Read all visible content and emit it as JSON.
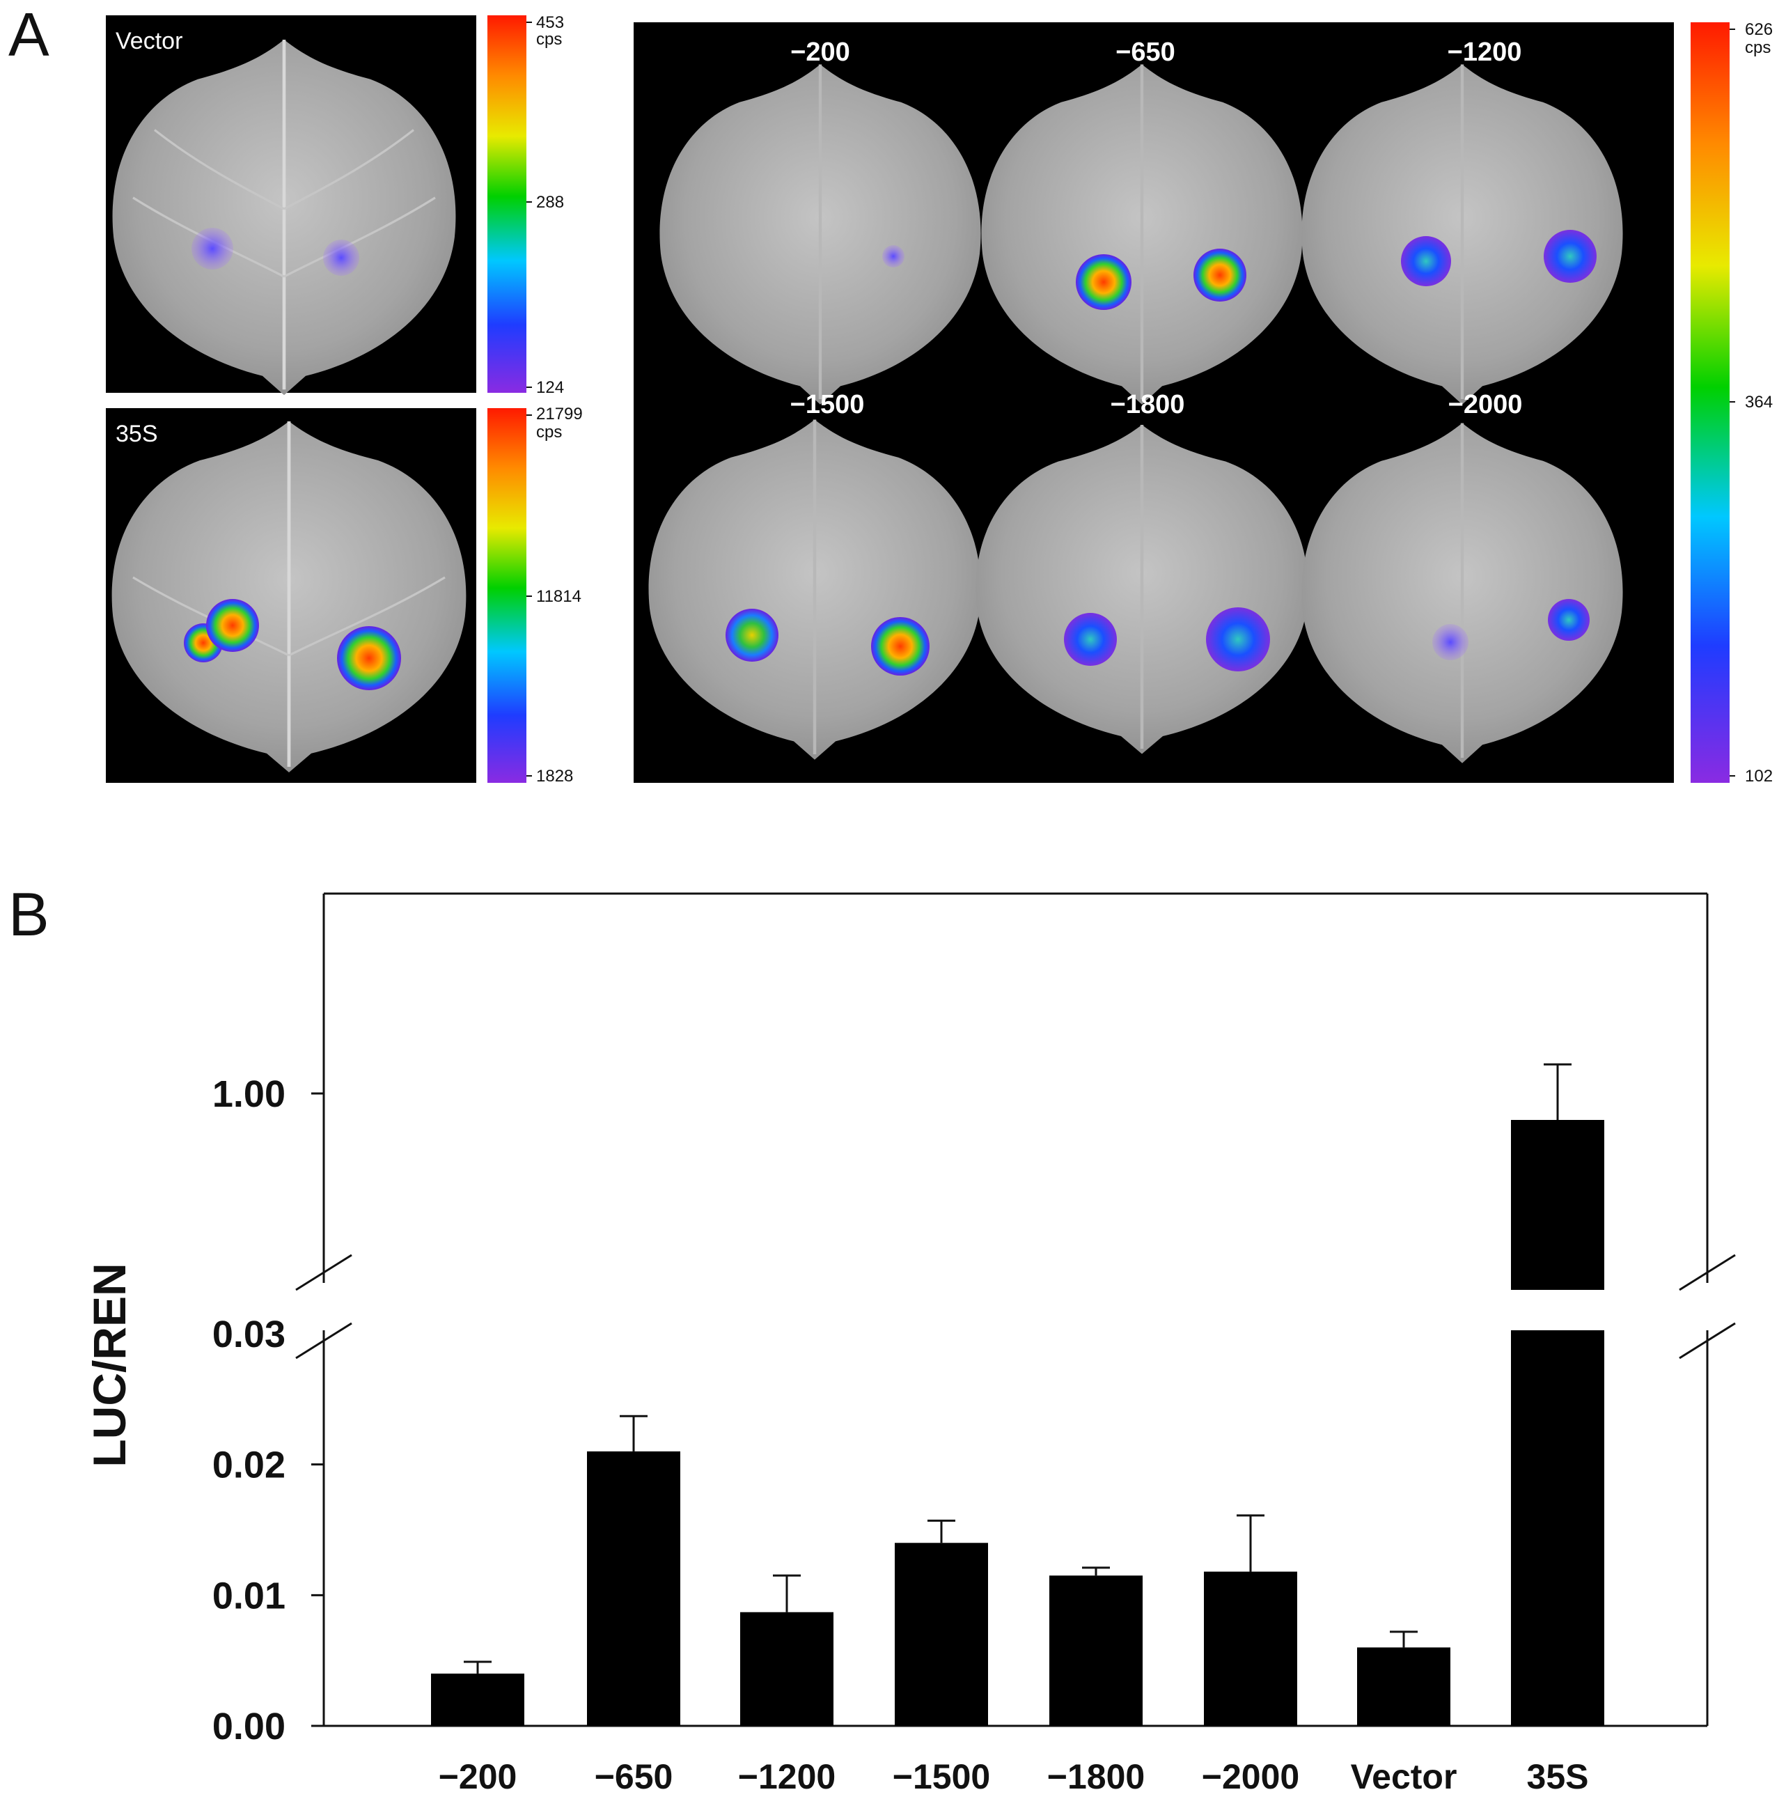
{
  "panel_a": {
    "letter": "A",
    "vector_panel": {
      "label": "Vector",
      "colorbar": {
        "max": "453",
        "unit": "cps",
        "mid": "288",
        "min": "124"
      }
    },
    "s35_panel": {
      "label": "35S",
      "colorbar": {
        "max": "21799",
        "unit": "cps",
        "mid": "11814",
        "min": "1828"
      }
    },
    "promoter_panel": {
      "leaf_labels": [
        "−200",
        "−650",
        "−1200",
        "−1500",
        "−1800",
        "−2000"
      ],
      "colorbar": {
        "max": "626",
        "unit": "cps",
        "mid": "364",
        "min": "102"
      }
    },
    "colors": {
      "background": "#000000",
      "leaf": "#a9a9a9"
    }
  },
  "panel_b": {
    "letter": "B",
    "chart_data": {
      "type": "bar",
      "ylabel": "LUC/REN",
      "categories": [
        "−200",
        "−650",
        "−1200",
        "−1500",
        "−1800",
        "−2000",
        "Vector",
        "35S"
      ],
      "values": [
        0.004,
        0.021,
        0.0087,
        0.014,
        0.0115,
        0.0118,
        0.006,
        0.9
      ],
      "errors": [
        0.0009,
        0.0027,
        0.0028,
        0.0017,
        0.0006,
        0.0043,
        0.0012,
        0.21
      ],
      "broken_axis": {
        "lower_range": [
          0,
          0.03
        ],
        "upper_tick": 1.0,
        "lower_ticks": [
          "0.00",
          "0.01",
          "0.02",
          "0.03"
        ],
        "upper_tick_label": "1.00"
      },
      "bar_color": "#000000"
    }
  }
}
